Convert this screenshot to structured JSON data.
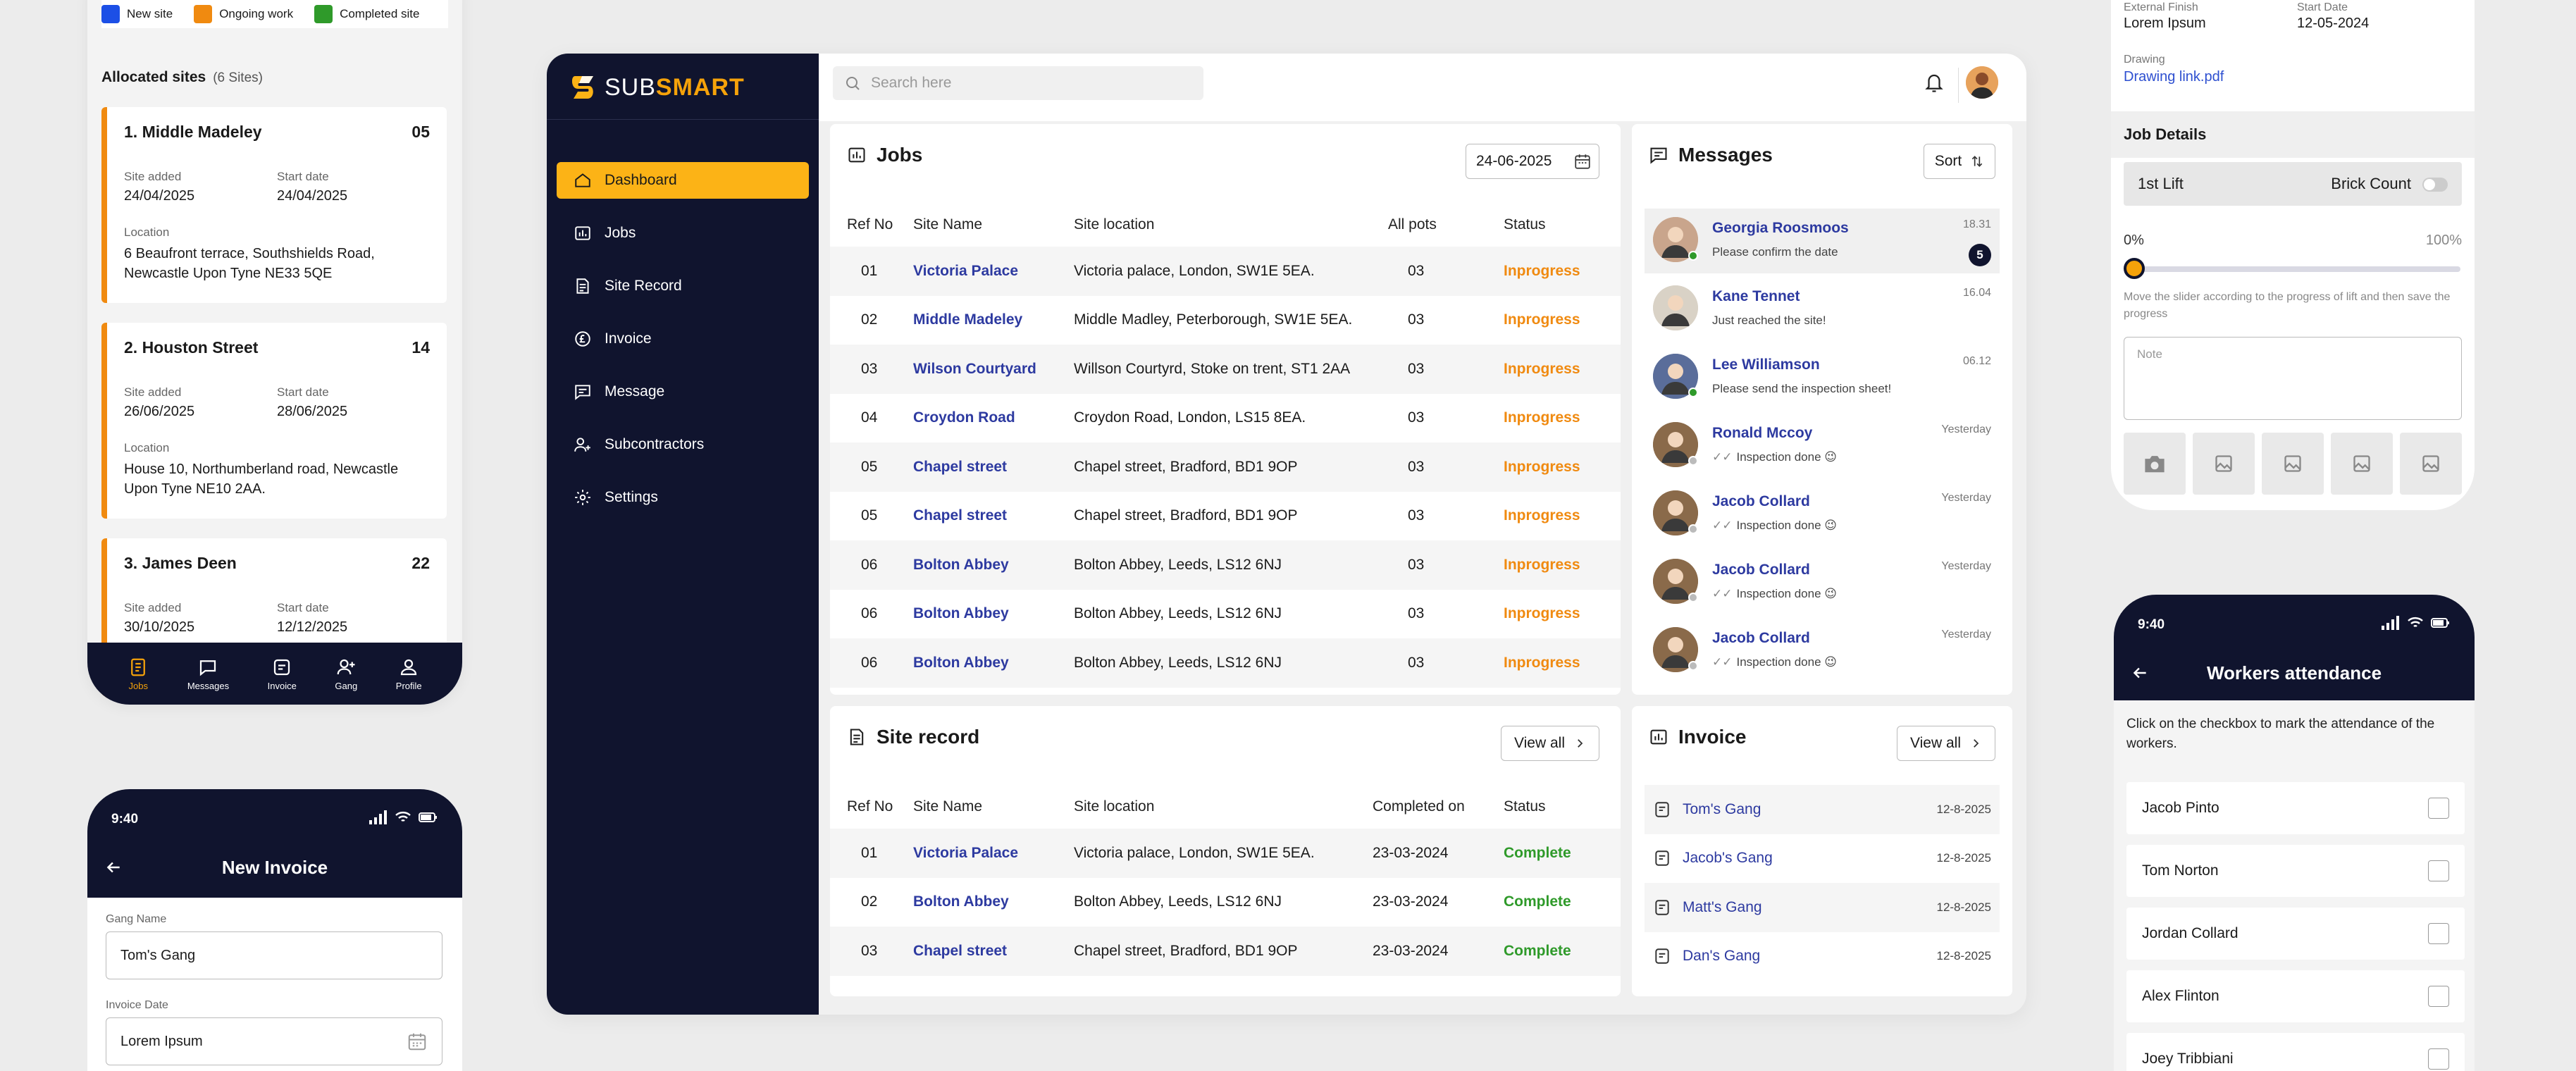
{
  "left_phone_sites": {
    "legend": [
      {
        "label": "New site",
        "color": "#1c4fe6"
      },
      {
        "label": "Ongoing work",
        "color": "#f08a10"
      },
      {
        "label": "Completed site",
        "color": "#2f9a2a"
      }
    ],
    "allocated_title": "Allocated sites",
    "allocated_count": "(6 Sites)",
    "site_added_label": "Site added",
    "start_date_label": "Start date",
    "location_label": "Location",
    "sites": [
      {
        "name": "1. Middle Madeley",
        "count": "05",
        "site_added": "24/04/2025",
        "start_date": "24/04/2025",
        "location": "6 Beaufront terrace, Southshields Road, Newcastle Upon Tyne NE33 5QE"
      },
      {
        "name": "2. Houston Street",
        "count": "14",
        "site_added": "26/06/2025",
        "start_date": "28/06/2025",
        "location": "House 10, Northumberland road, Newcastle Upon Tyne NE10 2AA."
      },
      {
        "name": "3. James Deen",
        "count": "22",
        "site_added": "30/10/2025",
        "start_date": "12/12/2025",
        "location": ""
      }
    ],
    "tabs": [
      "Jobs",
      "Messages",
      "Invoice",
      "Gang",
      "Profile"
    ]
  },
  "left_phone_invoice": {
    "time": "9:40",
    "title": "New Invoice",
    "gang_name_label": "Gang Name",
    "gang_name_value": "Tom's Gang",
    "invoice_date_label": "Invoice Date",
    "invoice_date_value": "Lorem Ipsum"
  },
  "dashboard": {
    "brand_light": "SUB",
    "brand_bold": "SMART",
    "nav": [
      "Dashboard",
      "Jobs",
      "Site Record",
      "Invoice",
      "Message",
      "Subcontractors",
      "Settings"
    ],
    "search_placeholder": "Search here",
    "jobs": {
      "title": "Jobs",
      "date": "24-06-2025",
      "columns": [
        "Ref No",
        "Site Name",
        "Site location",
        "All pots",
        "Status"
      ],
      "rows": [
        [
          "01",
          "Victoria Palace",
          "Victoria palace, London, SW1E 5EA.",
          "03",
          "Inprogress"
        ],
        [
          "02",
          "Middle Madeley",
          "Middle Madley, Peterborough, SW1E 5EA.",
          "03",
          "Inprogress"
        ],
        [
          "03",
          "Wilson Courtyard",
          "Willson Courtyrd, Stoke on trent, ST1 2AA",
          "03",
          "Inprogress"
        ],
        [
          "04",
          "Croydon Road",
          "Croydon Road, London, LS15 8EA.",
          "03",
          "Inprogress"
        ],
        [
          "05",
          "Chapel street",
          "Chapel street, Bradford, BD1 9OP",
          "03",
          "Inprogress"
        ],
        [
          "05",
          "Chapel street",
          "Chapel street, Bradford, BD1 9OP",
          "03",
          "Inprogress"
        ],
        [
          "06",
          "Bolton Abbey",
          "Bolton Abbey, Leeds, LS12 6NJ",
          "03",
          "Inprogress"
        ],
        [
          "06",
          "Bolton Abbey",
          "Bolton Abbey, Leeds, LS12 6NJ",
          "03",
          "Inprogress"
        ],
        [
          "06",
          "Bolton Abbey",
          "Bolton Abbey, Leeds, LS12 6NJ",
          "03",
          "Inprogress"
        ]
      ]
    },
    "messages": {
      "title": "Messages",
      "sort_label": "Sort",
      "items": [
        {
          "name": "Georgia Roosmoos",
          "text": "Please confirm the date",
          "time": "18.31",
          "badge": "5"
        },
        {
          "name": "Kane Tennet",
          "text": "Just reached the site!",
          "time": "16.04",
          "badge": ""
        },
        {
          "name": "Lee Williamson",
          "text": "Please send the inspection sheet!",
          "time": "06.12",
          "badge": ""
        },
        {
          "name": "Ronald Mccoy",
          "text": "Inspection done 😉",
          "time": "Yesterday",
          "badge": ""
        },
        {
          "name": "Jacob Collard",
          "text": "Inspection done 😉",
          "time": "Yesterday",
          "badge": ""
        },
        {
          "name": "Jacob Collard",
          "text": "Inspection done 😉",
          "time": "Yesterday",
          "badge": ""
        },
        {
          "name": "Jacob Collard",
          "text": "Inspection done 😉",
          "time": "Yesterday",
          "badge": ""
        }
      ]
    },
    "site_record": {
      "title": "Site record",
      "view_all": "View all",
      "columns": [
        "Ref No",
        "Site Name",
        "Site location",
        "Completed on",
        "Status"
      ],
      "rows": [
        [
          "01",
          "Victoria Palace",
          "Victoria palace, London, SW1E 5EA.",
          "23-03-2024",
          "Complete"
        ],
        [
          "02",
          "Bolton Abbey",
          "Bolton Abbey, Leeds, LS12 6NJ",
          "23-03-2024",
          "Complete"
        ],
        [
          "03",
          "Chapel street",
          "Chapel street, Bradford, BD1 9OP",
          "23-03-2024",
          "Complete"
        ]
      ]
    },
    "invoice": {
      "title": "Invoice",
      "view_all": "View all",
      "items": [
        {
          "name": "Tom's Gang",
          "date": "12-8-2025"
        },
        {
          "name": "Jacob's Gang",
          "date": "12-8-2025"
        },
        {
          "name": "Matt's Gang",
          "date": "12-8-2025"
        },
        {
          "name": "Dan's Gang",
          "date": "12-8-2025"
        }
      ]
    }
  },
  "right_phone_job": {
    "external_finish_label": "External Finish",
    "external_finish_value": "Lorem Ipsum",
    "start_date_label": "Start Date",
    "start_date_value": "12-05-2024",
    "drawing_label": "Drawing",
    "drawing_link": "Drawing link.pdf",
    "job_details": "Job Details",
    "lift_label": "1st Lift",
    "brick_count_label": "Brick Count",
    "progress_min": "0%",
    "progress_max": "100%",
    "progress_value": 0,
    "slider_help": "Move the slider according to the progress of lift and then save the progress",
    "note_placeholder": "Note"
  },
  "right_phone_attendance": {
    "time": "9:40",
    "title": "Workers attendance",
    "description": "Click on the checkbox to mark the attendance of the workers.",
    "workers": [
      "Jacob Pinto",
      "Tom Norton",
      "Jordan Collard",
      "Alex Flinton",
      "Joey Tribbiani"
    ]
  }
}
